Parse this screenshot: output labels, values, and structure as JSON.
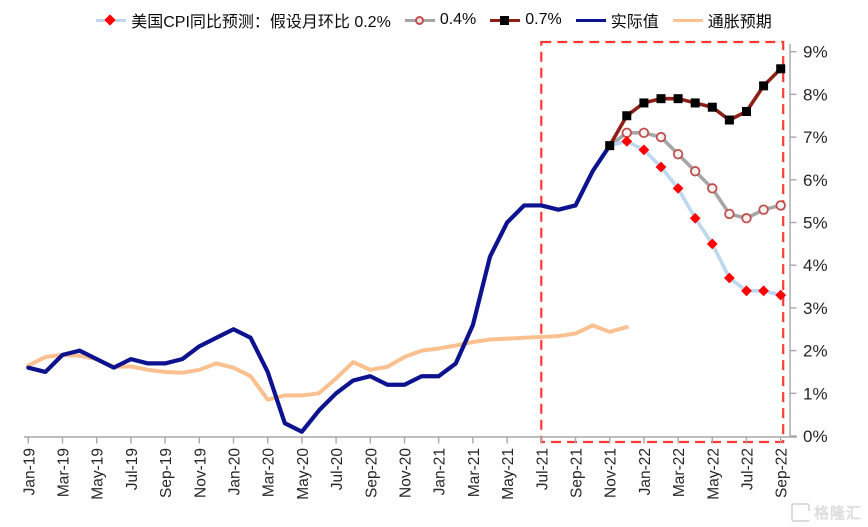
{
  "legend": {
    "items": [
      {
        "label": "美国CPI同比预测：假设月环比 0.2%",
        "marker": "diamond",
        "line_color": "#BDD7EE",
        "marker_color": "#FF0000"
      },
      {
        "label": "0.4%",
        "marker": "circle",
        "line_color": "#A6A6A6",
        "marker_color": "#C0504D"
      },
      {
        "label": "0.7%",
        "marker": "square",
        "line_color": "#8B2016",
        "marker_color": "#000000"
      },
      {
        "label": "实际值",
        "marker": "line",
        "line_color": "#0D128F",
        "marker_color": "#0D128F"
      },
      {
        "label": "通胀预期",
        "marker": "line",
        "line_color": "#FAC090",
        "marker_color": "#FAC090"
      }
    ]
  },
  "watermark": {
    "text": "格隆汇"
  },
  "chart_data": {
    "type": "line",
    "title": "",
    "x_tick_labels": [
      "Jan-19",
      "Mar-19",
      "May-19",
      "Jul-19",
      "Sep-19",
      "Nov-19",
      "Jan-20",
      "Mar-20",
      "May-20",
      "Jul-20",
      "Sep-20",
      "Nov-20",
      "Jan-21",
      "Mar-21",
      "May-21",
      "Jul-21",
      "Sep-21",
      "Nov-21",
      "Jan-22",
      "Mar-22",
      "May-22",
      "Jul-22",
      "Sep-22"
    ],
    "y_tick_labels": [
      "0%",
      "1%",
      "2%",
      "3%",
      "4%",
      "5%",
      "6%",
      "7%",
      "8%",
      "9%"
    ],
    "ylim": [
      0,
      9
    ],
    "months_total": 45,
    "x_range": [
      "Jan-19",
      "Sep-22"
    ],
    "yaxis_position": "right",
    "grid": false,
    "legend_position": "top",
    "highlight_box": {
      "from": "Jul-21",
      "to": "Sep-22",
      "color": "#FB3B33",
      "style": "dashed"
    },
    "series": [
      {
        "id": "f02",
        "name": "美国CPI同比预测：假设月环比 0.2%",
        "color": "#BDD7EE",
        "line_width": 3.6,
        "marker": "diamond",
        "marker_color": "#FF0000",
        "marker_from": 1,
        "start_index": 34,
        "start_month": "Nov-21",
        "values": [
          6.8,
          6.9,
          6.7,
          6.3,
          5.8,
          5.1,
          4.5,
          3.7,
          3.4,
          3.4,
          3.3
        ]
      },
      {
        "id": "f04",
        "name": "0.4%",
        "color": "#A6A6A6",
        "line_width": 3.6,
        "marker": "circle",
        "marker_color": "#C0504D",
        "marker_from": 1,
        "start_index": 34,
        "start_month": "Nov-21",
        "values": [
          6.8,
          7.1,
          7.1,
          7.0,
          6.6,
          6.2,
          5.8,
          5.2,
          5.1,
          5.3,
          5.4
        ]
      },
      {
        "id": "f07",
        "name": "0.7%",
        "color": "#8B2016",
        "line_width": 3.6,
        "marker": "square",
        "marker_color": "#000000",
        "marker_from": 0,
        "start_index": 34,
        "start_month": "Nov-21",
        "values": [
          6.8,
          7.5,
          7.8,
          7.9,
          7.9,
          7.8,
          7.7,
          7.4,
          7.6,
          8.2,
          8.6
        ]
      },
      {
        "id": "actual",
        "name": "实际值",
        "color": "#0D128F",
        "line_width": 4.2,
        "marker": "none",
        "marker_from": 0,
        "start_index": 0,
        "start_month": "Jan-19",
        "values": [
          1.6,
          1.5,
          1.9,
          2.0,
          1.8,
          1.6,
          1.8,
          1.7,
          1.7,
          1.8,
          2.1,
          2.3,
          2.5,
          2.3,
          1.5,
          0.3,
          0.1,
          0.6,
          1.0,
          1.3,
          1.4,
          1.2,
          1.2,
          1.4,
          1.4,
          1.7,
          2.6,
          4.2,
          5.0,
          5.4,
          5.4,
          5.3,
          5.4,
          6.2,
          6.8
        ]
      },
      {
        "id": "expectation",
        "name": "通胀预期",
        "color": "#FAC090",
        "line_width": 4.0,
        "marker": "none",
        "marker_from": 0,
        "start_index": 0,
        "start_month": "Jan-19",
        "values": [
          1.65,
          1.85,
          1.9,
          1.88,
          1.8,
          1.62,
          1.63,
          1.55,
          1.5,
          1.48,
          1.55,
          1.7,
          1.6,
          1.4,
          0.85,
          0.95,
          0.95,
          1.0,
          1.35,
          1.73,
          1.55,
          1.62,
          1.85,
          2.0,
          2.05,
          2.12,
          2.2,
          2.26,
          2.28,
          2.3,
          2.32,
          2.34,
          2.4,
          2.59,
          2.44,
          2.55
        ]
      }
    ]
  }
}
